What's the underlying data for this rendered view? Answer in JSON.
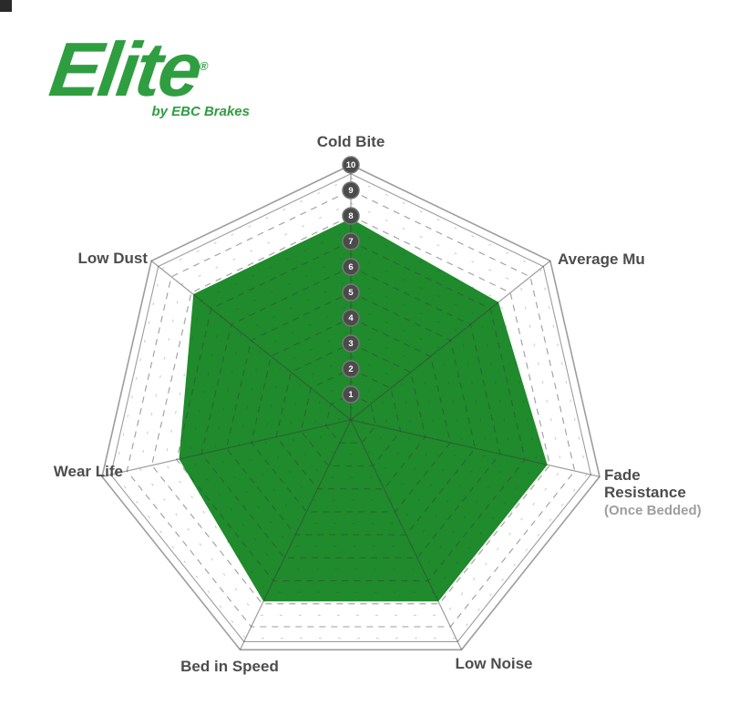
{
  "logo": {
    "name": "Elite",
    "registered": "®",
    "tagline": "by EBC Brakes",
    "color": "#2f9e41"
  },
  "chart_data": {
    "type": "radar",
    "title": "",
    "categories": [
      "Cold Bite",
      "Average Mu",
      "Fade Resistance (Once Bedded)",
      "Low Noise",
      "Bed in Speed",
      "Wear Life",
      "Low Dust"
    ],
    "values": [
      8,
      7.5,
      8,
      8,
      8,
      7,
      8
    ],
    "scale_min": 0,
    "scale_max": 10,
    "tick_labels": [
      "1",
      "2",
      "3",
      "4",
      "5",
      "6",
      "7",
      "8",
      "9",
      "10"
    ],
    "fill_color": "#1f8b2c",
    "grid_color": "rgba(60,60,60,0.5)",
    "badge_fill": "#4b4b4b",
    "badge_ring": "#787878",
    "badge_text_color": "#ffffff",
    "legend_position": "none",
    "grid_style": "dashed concentric heptagons, solid double outer ring, solid spokes"
  },
  "axis_labels": {
    "cold_bite": "Cold Bite",
    "average_mu": "Average Mu",
    "fade_resistance": "Fade\nResistance",
    "fade_resistance_note": "(Once Bedded)",
    "low_noise": "Low Noise",
    "bed_in_speed": "Bed in Speed",
    "wear_life": "Wear Life",
    "low_dust": "Low Dust"
  }
}
